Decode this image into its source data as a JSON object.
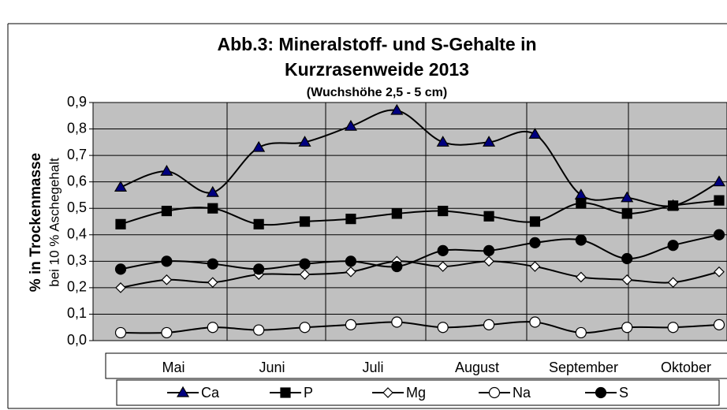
{
  "chart_data": {
    "type": "line",
    "title": "Abb.3: Mineralstoff- und S-Gehalte in",
    "title_line2": "Kurzrasenweide 2013",
    "subtitle": "(Wuchshöhe  2,5 - 5 cm)",
    "y_label": "% in Trockenmasse",
    "y_label_sub": "bei 10 % Aschegehalt",
    "categories": [
      null,
      null,
      null,
      null,
      null,
      null,
      null,
      null,
      null,
      null,
      null,
      null,
      null,
      null
    ],
    "month_labels": [
      "Mai",
      "Juni",
      "Juli",
      "August",
      "September",
      "Oktober"
    ],
    "ylim": [
      0,
      0.9
    ],
    "yticks": [
      {
        "value": 0,
        "label": "0,0"
      },
      {
        "value": 0.1,
        "label": "0,1"
      },
      {
        "value": 0.2,
        "label": "0,2"
      },
      {
        "value": 0.3,
        "label": "0,3"
      },
      {
        "value": 0.4,
        "label": "0,4"
      },
      {
        "value": 0.5,
        "label": "0,5"
      },
      {
        "value": 0.6,
        "label": "0,6"
      },
      {
        "value": 0.7,
        "label": "0,7"
      },
      {
        "value": 0.8,
        "label": "0,8"
      },
      {
        "value": 0.9,
        "label": "0,9"
      }
    ],
    "grid": true,
    "plot_background": "#c0c0c0",
    "series": [
      {
        "name": "Ca",
        "color": "#000080",
        "marker": "triangle",
        "values": [
          0.58,
          0.64,
          0.56,
          0.73,
          0.75,
          0.81,
          0.87,
          0.75,
          0.75,
          0.78,
          0.55,
          0.54,
          0.51,
          0.6
        ]
      },
      {
        "name": "P",
        "color": "#000000",
        "marker": "square",
        "values": [
          0.44,
          0.49,
          0.5,
          0.44,
          0.45,
          0.46,
          0.48,
          0.49,
          0.47,
          0.45,
          0.52,
          0.48,
          0.51,
          0.53
        ]
      },
      {
        "name": "Mg",
        "color": "#ffffff",
        "marker": "diamond",
        "values": [
          0.2,
          0.23,
          0.22,
          0.25,
          0.25,
          0.26,
          0.3,
          0.28,
          0.3,
          0.28,
          0.24,
          0.23,
          0.22,
          0.26
        ]
      },
      {
        "name": "Na",
        "color": "#ffffff",
        "marker": "circle",
        "values": [
          0.03,
          0.03,
          0.05,
          0.04,
          0.05,
          0.06,
          0.07,
          0.05,
          0.06,
          0.07,
          0.03,
          0.05,
          0.05,
          0.06
        ]
      },
      {
        "name": "S",
        "color": "#000000",
        "marker": "circle",
        "values": [
          0.27,
          0.3,
          0.29,
          0.27,
          0.29,
          0.3,
          0.28,
          0.34,
          0.34,
          0.37,
          0.38,
          0.31,
          0.36,
          0.4
        ]
      }
    ]
  }
}
